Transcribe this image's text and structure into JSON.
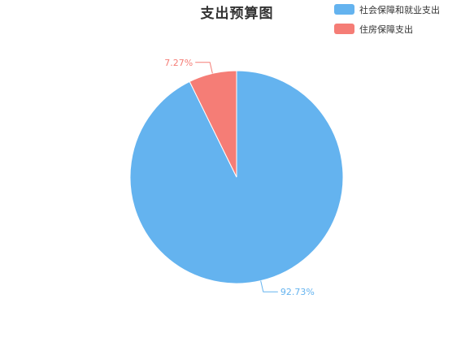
{
  "chart_data": {
    "type": "pie",
    "title": "支出预算图",
    "legend_position": "top-right",
    "slices": [
      {
        "name": "社会保障和就业支出",
        "value": 92.73,
        "label": "92.73%",
        "color": "#64b3ef"
      },
      {
        "name": "住房保障支出",
        "value": 7.27,
        "label": "7.27%",
        "color": "#f57d76"
      }
    ]
  }
}
